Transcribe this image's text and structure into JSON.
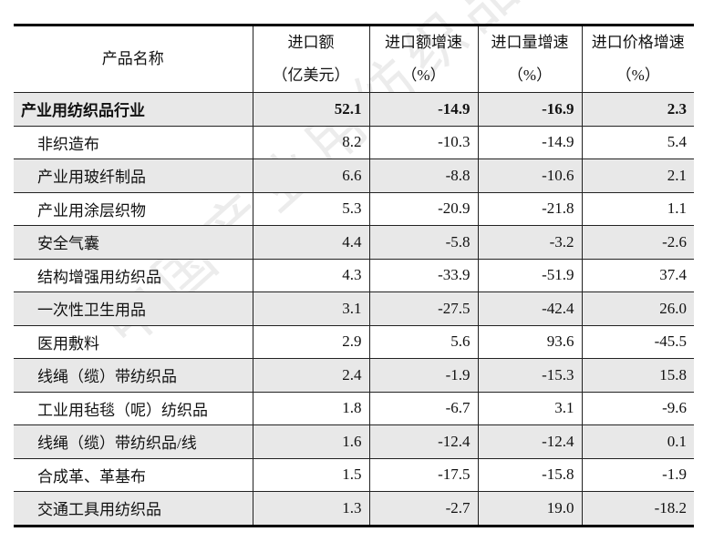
{
  "watermark": "中国产业用纺织品行业协会",
  "headers": [
    {
      "line1": "产品名称",
      "line2": ""
    },
    {
      "line1": "进口额",
      "line2": "（亿美元）"
    },
    {
      "line1": "进口额增速",
      "line2": "（%）"
    },
    {
      "line1": "进口量增速",
      "line2": "（%）"
    },
    {
      "line1": "进口价格增速",
      "line2": "（%）"
    }
  ],
  "rows": [
    [
      "产业用纺织品行业",
      "52.1",
      "-14.9",
      "-16.9",
      "2.3"
    ],
    [
      "非织造布",
      "8.2",
      "-10.3",
      "-14.9",
      "5.4"
    ],
    [
      "产业用玻纤制品",
      "6.6",
      "-8.8",
      "-10.6",
      "2.1"
    ],
    [
      "产业用涂层织物",
      "5.3",
      "-20.9",
      "-21.8",
      "1.1"
    ],
    [
      "安全气囊",
      "4.4",
      "-5.8",
      "-3.2",
      "-2.6"
    ],
    [
      "结构增强用纺织品",
      "4.3",
      "-33.9",
      "-51.9",
      "37.4"
    ],
    [
      "一次性卫生用品",
      "3.1",
      "-27.5",
      "-42.4",
      "26.0"
    ],
    [
      "医用敷料",
      "2.9",
      "5.6",
      "93.6",
      "-45.5"
    ],
    [
      "线绳（缆）带纺织品",
      "2.4",
      "-1.9",
      "-15.3",
      "15.8"
    ],
    [
      "工业用毡毯（呢）纺织品",
      "1.8",
      "-6.7",
      "3.1",
      "-9.6"
    ],
    [
      "线绳（缆）带纺织品/线",
      "1.6",
      "-12.4",
      "-12.4",
      "0.1"
    ],
    [
      "合成革、革基布",
      "1.5",
      "-17.5",
      "-15.8",
      "-1.9"
    ],
    [
      "交通工具用纺织品",
      "1.3",
      "-2.7",
      "19.0",
      "-18.2"
    ]
  ]
}
